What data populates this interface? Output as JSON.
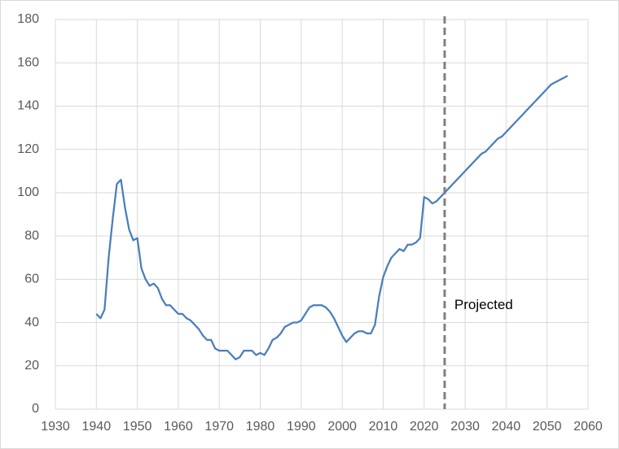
{
  "chart_data": {
    "type": "line",
    "x": [
      1940,
      1941,
      1942,
      1943,
      1944,
      1945,
      1946,
      1947,
      1948,
      1949,
      1950,
      1951,
      1952,
      1953,
      1954,
      1955,
      1956,
      1957,
      1958,
      1959,
      1960,
      1961,
      1962,
      1963,
      1964,
      1965,
      1966,
      1967,
      1968,
      1969,
      1970,
      1971,
      1972,
      1973,
      1974,
      1975,
      1976,
      1977,
      1978,
      1979,
      1980,
      1981,
      1982,
      1983,
      1984,
      1985,
      1986,
      1987,
      1988,
      1989,
      1990,
      1991,
      1992,
      1993,
      1994,
      1995,
      1996,
      1997,
      1998,
      1999,
      2000,
      2001,
      2002,
      2003,
      2004,
      2005,
      2006,
      2007,
      2008,
      2009,
      2010,
      2011,
      2012,
      2013,
      2014,
      2015,
      2016,
      2017,
      2018,
      2019,
      2020,
      2021,
      2022,
      2023,
      2024,
      2025,
      2026,
      2027,
      2028,
      2029,
      2030,
      2031,
      2032,
      2033,
      2034,
      2035,
      2036,
      2037,
      2038,
      2039,
      2040,
      2041,
      2042,
      2043,
      2044,
      2045,
      2046,
      2047,
      2048,
      2049,
      2050,
      2051,
      2052,
      2053,
      2054,
      2055
    ],
    "series": [
      {
        "color": "#4a7ebb",
        "values": [
          44,
          42,
          46,
          70,
          88,
          104,
          106,
          93,
          83,
          78,
          79,
          65,
          60,
          57,
          58,
          56,
          51,
          48,
          48,
          46,
          44,
          44,
          42,
          41,
          39,
          37,
          34,
          32,
          32,
          28,
          27,
          27,
          27,
          25,
          23,
          24,
          27,
          27,
          27,
          25,
          26,
          25,
          28,
          32,
          33,
          35,
          38,
          39,
          40,
          40,
          41,
          44,
          47,
          48,
          48,
          48,
          47,
          45,
          42,
          38,
          34,
          31,
          33,
          35,
          36,
          36,
          35,
          35,
          39,
          52,
          61,
          66,
          70,
          72,
          74,
          73,
          76,
          76,
          77,
          79,
          98,
          97,
          95,
          96,
          98,
          100,
          102,
          104,
          106,
          108,
          110,
          112,
          114,
          116,
          118,
          119,
          121,
          123,
          125,
          126,
          128,
          130,
          132,
          134,
          136,
          138,
          140,
          142,
          144,
          146,
          148,
          150,
          151,
          152,
          153,
          154
        ]
      }
    ],
    "xlim": [
      1930,
      2060
    ],
    "xticks": [
      1930,
      1940,
      1950,
      1960,
      1970,
      1980,
      1990,
      2000,
      2010,
      2020,
      2030,
      2040,
      2050,
      2060
    ],
    "ylim": [
      0,
      180
    ],
    "yticks": [
      0,
      20,
      40,
      60,
      80,
      100,
      120,
      140,
      160,
      180
    ],
    "grid": true,
    "reference_line": {
      "x": 2025,
      "label": "Projected",
      "color": "#808080"
    }
  }
}
